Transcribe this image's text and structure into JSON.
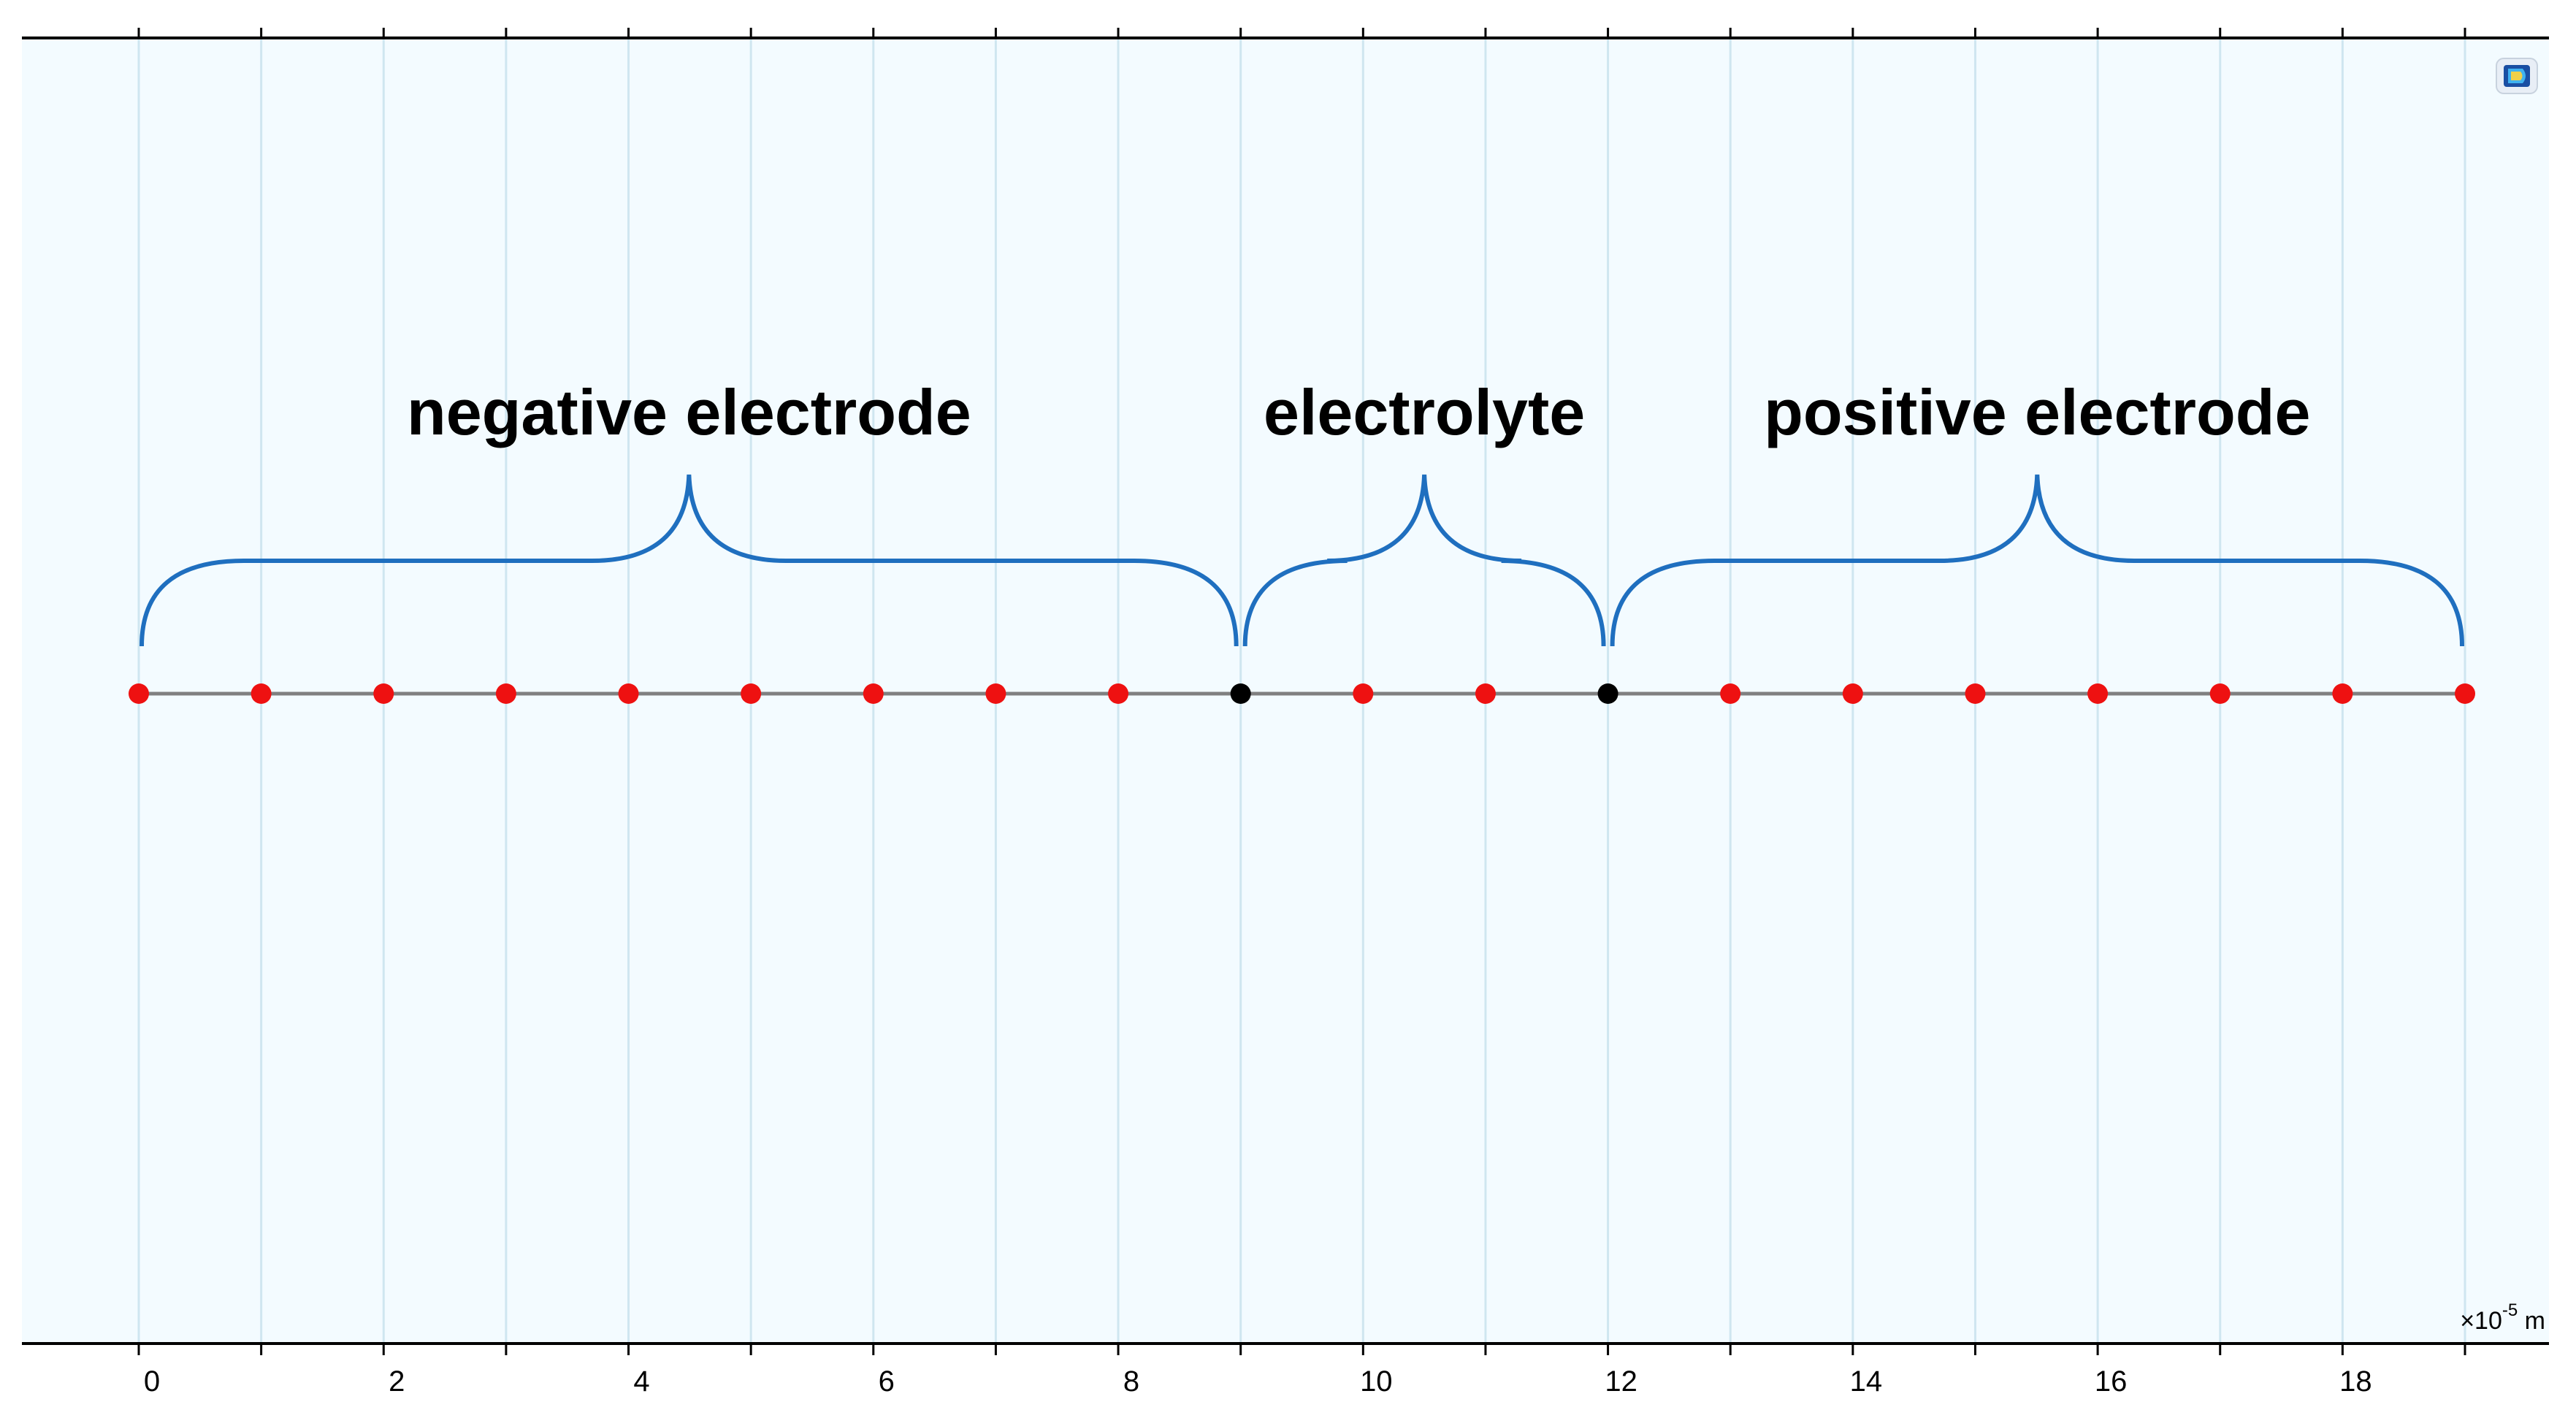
{
  "axis": {
    "ticks": [
      0,
      1,
      2,
      3,
      4,
      5,
      6,
      7,
      8,
      9,
      10,
      11,
      12,
      13,
      14,
      15,
      16,
      17,
      18,
      19
    ],
    "labeled_ticks": [
      "0",
      "2",
      "4",
      "6",
      "8",
      "10",
      "12",
      "14",
      "16",
      "18"
    ],
    "scale_prefix": "×10",
    "scale_exponent": "-5",
    "unit": "m"
  },
  "regions": [
    {
      "label": "negative electrode",
      "from": 0,
      "to": 9
    },
    {
      "label": "electrolyte",
      "from": 9,
      "to": 12
    },
    {
      "label": "positive electrode",
      "from": 12,
      "to": 19
    }
  ],
  "nodes": [
    {
      "x": 0,
      "type": "domain"
    },
    {
      "x": 1,
      "type": "domain"
    },
    {
      "x": 2,
      "type": "domain"
    },
    {
      "x": 3,
      "type": "domain"
    },
    {
      "x": 4,
      "type": "domain"
    },
    {
      "x": 5,
      "type": "domain"
    },
    {
      "x": 6,
      "type": "domain"
    },
    {
      "x": 7,
      "type": "domain"
    },
    {
      "x": 8,
      "type": "domain"
    },
    {
      "x": 9,
      "type": "boundary"
    },
    {
      "x": 10,
      "type": "domain"
    },
    {
      "x": 11,
      "type": "domain"
    },
    {
      "x": 12,
      "type": "boundary"
    },
    {
      "x": 13,
      "type": "domain"
    },
    {
      "x": 14,
      "type": "domain"
    },
    {
      "x": 15,
      "type": "domain"
    },
    {
      "x": 16,
      "type": "domain"
    },
    {
      "x": 17,
      "type": "domain"
    },
    {
      "x": 18,
      "type": "domain"
    },
    {
      "x": 19,
      "type": "domain"
    }
  ],
  "colors": {
    "background": "#f3fbff",
    "gridline": "#cfe6f0",
    "brace": "#1f6fbf",
    "domain_node": "#ee1111",
    "boundary_node": "#000000",
    "axis_line": "#808080",
    "label": "#000000"
  },
  "toolbar_icon": "comsol-logo-icon"
}
